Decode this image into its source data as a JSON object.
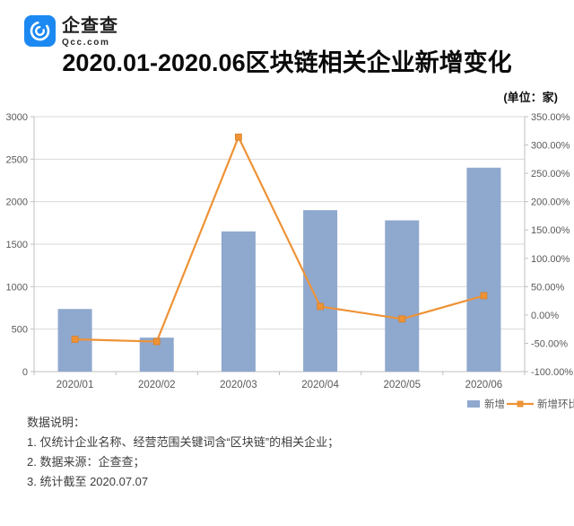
{
  "logo": {
    "name": "企查查",
    "domain": "Qcc.com",
    "brand_color": "#1C89F2"
  },
  "title": "2020.01-2020.06区块链相关企业新增变化",
  "unit_label": "(单位：家)",
  "chart_data": {
    "type": "bar",
    "subtype": "combo-bar-line-dual-axis",
    "categories": [
      "2020/01",
      "2020/02",
      "2020/03",
      "2020/04",
      "2020/05",
      "2020/06"
    ],
    "series": [
      {
        "name": "新增",
        "type": "bar",
        "axis": "left",
        "color": "#8FA8CE",
        "values": [
          737,
          400,
          1650,
          1900,
          1780,
          2400
        ]
      },
      {
        "name": "新增环比",
        "type": "line",
        "axis": "right",
        "color": "#EE9336",
        "marker": "square",
        "values_pct": [
          -43,
          -47,
          314,
          15,
          -7,
          34
        ]
      }
    ],
    "left_axis": {
      "min": 0,
      "max": 3000,
      "step": 500,
      "tick_labels": [
        "0",
        "500",
        "1000",
        "1500",
        "2000",
        "2500",
        "3000"
      ]
    },
    "right_axis": {
      "min": -100,
      "max": 350,
      "step": 50,
      "tick_labels": [
        "-100.00%",
        "-50.00%",
        "0.00%",
        "50.00%",
        "100.00%",
        "150.00%",
        "200.00%",
        "250.00%",
        "300.00%",
        "350.00%"
      ]
    },
    "grid": true,
    "legend_position": "bottom-right"
  },
  "notes": {
    "heading": "数据说明：",
    "items": [
      "1. 仅统计企业名称、经营范围关键词含“区块链”的相关企业；",
      "2. 数据来源：企查查；",
      "3. 统计截至 2020.07.07"
    ]
  },
  "colors": {
    "bar": "#8FA8CE",
    "line": "#EE9336",
    "grid": "#D9D9D9",
    "axis": "#BFBFBF",
    "tick_text": "#595959",
    "title_text": "#0A0A0A",
    "note_text": "#3D3D3D",
    "logo_blue": "#1C89F2"
  }
}
